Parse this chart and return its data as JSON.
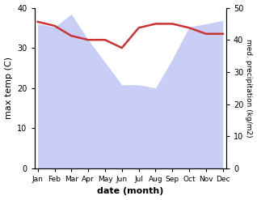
{
  "months": [
    "Jan",
    "Feb",
    "Mar",
    "Apr",
    "May",
    "Jun",
    "Jul",
    "Aug",
    "Sep",
    "Oct",
    "Nov",
    "Dec"
  ],
  "max_temp": [
    36.5,
    35.5,
    33.0,
    32.0,
    32.0,
    30.0,
    35.0,
    36.0,
    36.0,
    35.0,
    33.5,
    33.5
  ],
  "precipitation": [
    45,
    44,
    48,
    40,
    33,
    26,
    26,
    25,
    34,
    44,
    45,
    46
  ],
  "temp_color": "#cc3333",
  "precip_fill_color": "#c8cef5",
  "temp_ylim": [
    0,
    40
  ],
  "precip_ylim": [
    0,
    50
  ],
  "xlabel": "date (month)",
  "ylabel_left": "max temp (C)",
  "ylabel_right": "med. precipitation (kg/m2)",
  "temp_yticks": [
    0,
    10,
    20,
    30,
    40
  ],
  "precip_yticks": [
    0,
    10,
    20,
    30,
    40,
    50
  ],
  "figsize": [
    3.18,
    2.47
  ],
  "dpi": 100
}
